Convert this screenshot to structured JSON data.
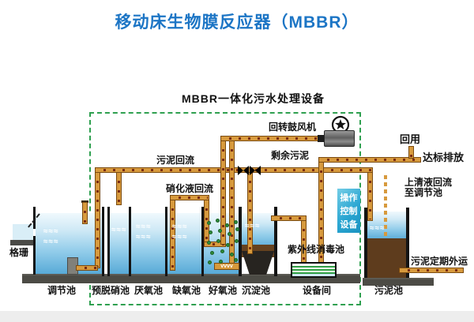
{
  "title": "移动床生物膜反应器（MBBR）",
  "diagram": {
    "subtitle": "MBBR一体化污水处理设备",
    "labels": {
      "blower": "回转鼓风机",
      "sludge_return": "污泥回流",
      "nitrified_return": "硝化液回流",
      "excess_sludge": "剩余污泥",
      "reuse": "回用",
      "discharge": "达标排放",
      "supernatant_line1": "上清液回流",
      "supernatant_line2": "至调节池",
      "uv_pool": "紫外线消毒池",
      "sludge_out": "污泥定期外运",
      "screen": "格珊"
    },
    "control_box": {
      "line1": "操作",
      "line2": "控制",
      "line3": "设备"
    },
    "tanks": [
      {
        "label": "调节池"
      },
      {
        "label": "预脱硝池"
      },
      {
        "label": "厌氧池"
      },
      {
        "label": "缺氧池"
      },
      {
        "label": "好氧池"
      },
      {
        "label": "沉淀池"
      },
      {
        "label": "设备间"
      },
      {
        "label": "污泥池"
      }
    ],
    "colors": {
      "title_blue": "#1c75c5",
      "pipe_orange": "#d79a3d",
      "dashed_green": "#2fa050",
      "control_cyan": "#2aa6d2",
      "media_green": "#2e8b3a",
      "sludge_brown": "#66421f"
    }
  }
}
